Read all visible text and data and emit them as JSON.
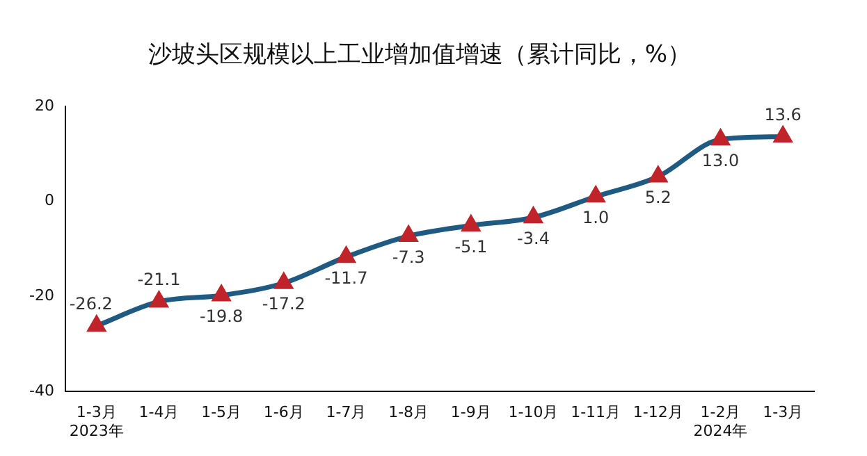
{
  "chart_data": {
    "type": "line",
    "title": "沙坡头区规模以上工业增加值增速（累计同比，%）",
    "categories": [
      "1-3月\n2023年",
      "1-4月",
      "1-5月",
      "1-6月",
      "1-7月",
      "1-8月",
      "1-9月",
      "1-10月",
      "1-11月",
      "1-12月",
      "1-2月\n2024年",
      "1-3月"
    ],
    "series": [
      {
        "color": "#1f5a82",
        "colors": [
          "#c0232a",
          "#c0232a",
          "#c0232a",
          "#c0232a",
          "#c0232a",
          "#c0232a",
          "#c0232a",
          "#c0232a",
          "#c0232a",
          "#c0232a",
          "#c0232a",
          "#c0232a"
        ],
        "values": [
          -26.2,
          -21.1,
          -19.8,
          -17.2,
          -11.7,
          -7.3,
          -5.1,
          -3.4,
          1.0,
          5.2,
          13.0,
          13.6
        ],
        "value_labels": [
          "-26.2",
          "-21.1",
          "-19.8",
          "-17.2",
          "-11.7",
          "-7.3",
          "-5.1",
          "-3.4",
          "1.0",
          "5.2",
          "13.0",
          "13.6"
        ]
      }
    ],
    "ylim": [
      -40,
      20
    ],
    "yticks": [
      -40,
      -20,
      0,
      20
    ],
    "grid": false,
    "legend": false,
    "marker": "triangle",
    "line_style": "solid"
  }
}
